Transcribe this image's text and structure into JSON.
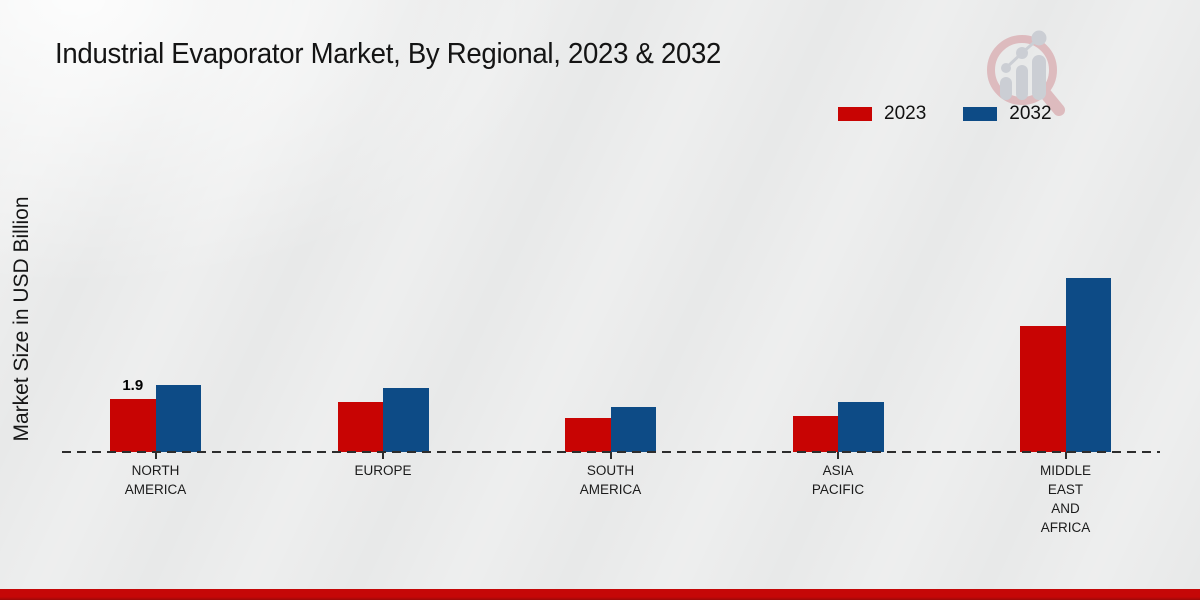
{
  "title": "Industrial Evaporator Market, By Regional, 2023 & 2032",
  "y_axis_label": "Market Size in USD Billion",
  "legend": {
    "items": [
      {
        "label": "2023",
        "color": "#c80403"
      },
      {
        "label": "2032",
        "color": "#0d4b86"
      }
    ]
  },
  "chart_data": {
    "type": "bar",
    "title": "Industrial Evaporator Market, By Regional, 2023 & 2032",
    "ylabel": "Market Size in USD Billion",
    "categories": [
      "NORTH AMERICA",
      "EUROPE",
      "SOUTH AMERICA",
      "ASIA PACIFIC",
      "MIDDLE EAST AND AFRICA"
    ],
    "series": [
      {
        "name": "2023",
        "color": "#c80403",
        "values": [
          1.9,
          1.8,
          1.2,
          1.3,
          4.5
        ],
        "point_labels": [
          "1.9",
          "",
          "",
          "",
          ""
        ]
      },
      {
        "name": "2032",
        "color": "#0d4b86",
        "values": [
          2.4,
          2.3,
          1.6,
          1.8,
          6.2
        ],
        "point_labels": [
          "",
          "",
          "",
          "",
          ""
        ]
      }
    ],
    "axis_style": "dashed-baseline-only",
    "grid": "off",
    "legend_position": "top-right",
    "ylim": [
      0,
      7
    ]
  },
  "branding": {
    "logo": "magnifier-bar-chart-logo"
  },
  "footer": {
    "accent_color": "#c50707"
  }
}
